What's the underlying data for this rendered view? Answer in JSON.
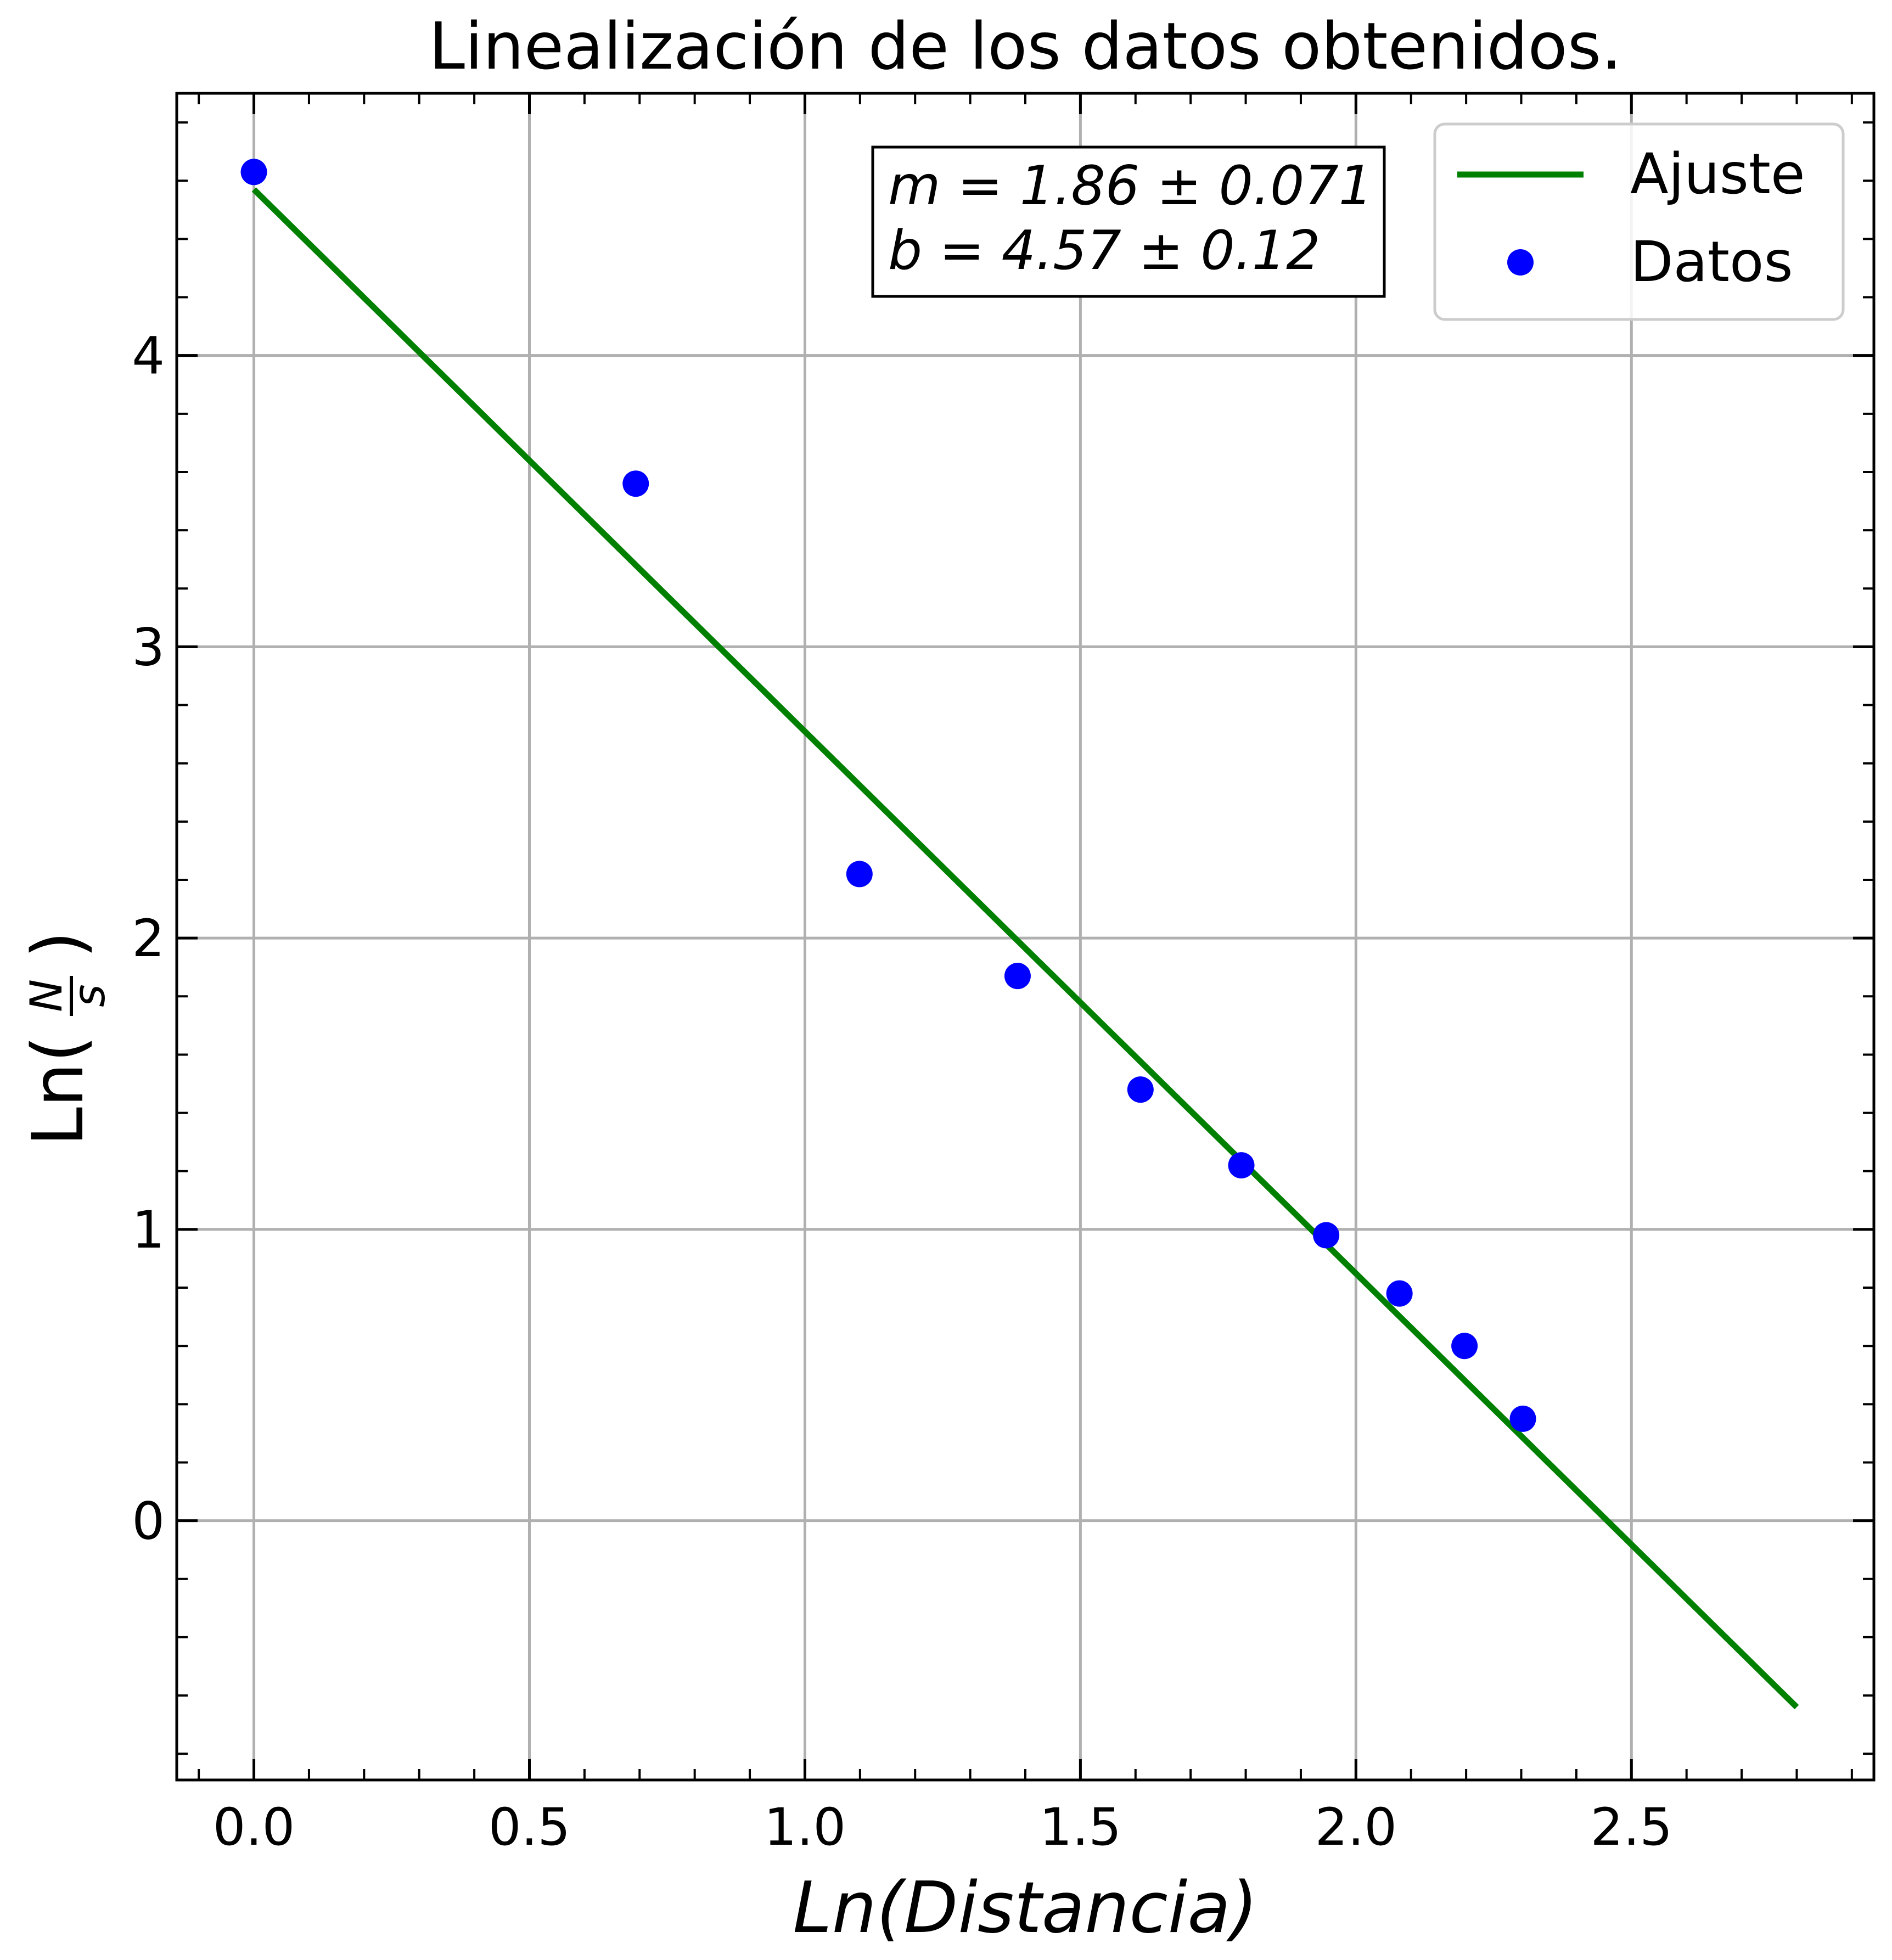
{
  "chart_data": {
    "type": "scatter",
    "title": "Linealización de los datos obtenidos.",
    "xlabel": "Ln(Distancia)",
    "ylabel_prefix": "Ln(",
    "ylabel_num": "N",
    "ylabel_den": "s",
    "ylabel_suffix": ")",
    "xlim": [
      -0.14,
      2.94
    ],
    "ylim": [
      -0.89,
      4.9
    ],
    "xticks": [
      0.0,
      0.5,
      1.0,
      1.5,
      2.0,
      2.5
    ],
    "xtick_labels": [
      "0.0",
      "0.5",
      "1.0",
      "1.5",
      "2.0",
      "2.5"
    ],
    "yticks": [
      0,
      1,
      2,
      3,
      4
    ],
    "ytick_labels": [
      "0",
      "1",
      "2",
      "3",
      "4"
    ],
    "grid": true,
    "legend_position": "top-right",
    "series": [
      {
        "name": "Ajuste",
        "kind": "line",
        "color": "#008000",
        "x": [
          0.0,
          2.8
        ],
        "y": [
          4.57,
          -0.64
        ]
      },
      {
        "name": "Datos",
        "kind": "scatter",
        "color": "#0000ff",
        "x": [
          0.0,
          0.693,
          1.099,
          1.386,
          1.609,
          1.792,
          1.946,
          2.079,
          2.197,
          2.303
        ],
        "y": [
          4.63,
          3.56,
          2.22,
          1.87,
          1.48,
          1.22,
          0.98,
          0.78,
          0.6,
          0.35
        ]
      }
    ],
    "annotation_lines": [
      "m = 1.86 ± 0.071",
      "b = 4.57 ± 0.12"
    ]
  }
}
